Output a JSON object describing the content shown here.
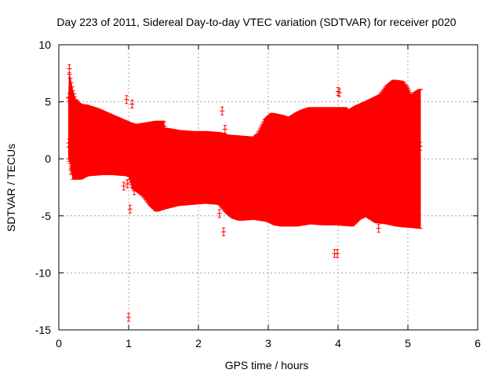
{
  "chart_data": {
    "type": "errorbar",
    "title": "Day 223 of 2011, Sidereal Day-to-day VTEC variation (SDTVAR) for receiver p020",
    "xlabel": "GPS time / hours",
    "ylabel": "SDTVAR / TECUs",
    "xlim": [
      0,
      6
    ],
    "ylim": [
      -15,
      10
    ],
    "x_ticks": [
      0,
      1,
      2,
      3,
      4,
      5,
      6
    ],
    "y_ticks": [
      -15,
      -10,
      -5,
      0,
      5,
      10
    ],
    "x_tick_labels": [
      "0",
      "1",
      "2",
      "3",
      "4",
      "5",
      "6"
    ],
    "y_tick_labels": [
      "-15",
      "-10",
      "-5",
      "0",
      "5",
      "10"
    ],
    "grid": true,
    "series_color": "#ff0000",
    "band_upper": [
      [
        0.14,
        5.3
      ],
      [
        0.15,
        7.5
      ],
      [
        0.17,
        6.9
      ],
      [
        0.2,
        6.0
      ],
      [
        0.24,
        5.2
      ],
      [
        0.3,
        4.8
      ],
      [
        0.4,
        4.7
      ],
      [
        0.55,
        4.4
      ],
      [
        0.7,
        4.0
      ],
      [
        0.85,
        3.6
      ],
      [
        1.0,
        3.2
      ],
      [
        1.1,
        3.0
      ],
      [
        1.2,
        3.1
      ],
      [
        1.3,
        3.2
      ],
      [
        1.4,
        3.3
      ],
      [
        1.5,
        3.3
      ],
      [
        1.52,
        2.7
      ],
      [
        1.7,
        2.5
      ],
      [
        1.9,
        2.4
      ],
      [
        2.1,
        2.4
      ],
      [
        2.3,
        2.3
      ],
      [
        2.4,
        2.1
      ],
      [
        2.6,
        2.0
      ],
      [
        2.8,
        1.9
      ],
      [
        2.85,
        2.2
      ],
      [
        2.95,
        3.4
      ],
      [
        3.05,
        4.0
      ],
      [
        3.2,
        3.8
      ],
      [
        3.3,
        3.6
      ],
      [
        3.4,
        4.0
      ],
      [
        3.5,
        4.3
      ],
      [
        3.6,
        4.5
      ],
      [
        3.8,
        4.5
      ],
      [
        4.0,
        4.5
      ],
      [
        4.1,
        4.5
      ],
      [
        4.15,
        4.2
      ],
      [
        4.25,
        4.6
      ],
      [
        4.4,
        5.0
      ],
      [
        4.6,
        5.6
      ],
      [
        4.7,
        6.4
      ],
      [
        4.8,
        6.9
      ],
      [
        4.92,
        6.8
      ],
      [
        5.0,
        6.2
      ],
      [
        5.05,
        5.5
      ],
      [
        5.1,
        5.8
      ],
      [
        5.18,
        6.1
      ]
    ],
    "band_lower": [
      [
        0.14,
        0.0
      ],
      [
        0.17,
        -0.5
      ],
      [
        0.2,
        -1.8
      ],
      [
        0.3,
        -1.8
      ],
      [
        0.4,
        -1.5
      ],
      [
        0.6,
        -1.4
      ],
      [
        0.8,
        -1.4
      ],
      [
        1.0,
        -1.5
      ],
      [
        1.05,
        -2.5
      ],
      [
        1.2,
        -3.2
      ],
      [
        1.3,
        -4.0
      ],
      [
        1.4,
        -4.6
      ],
      [
        1.5,
        -4.4
      ],
      [
        1.7,
        -4.1
      ],
      [
        1.9,
        -4.0
      ],
      [
        2.1,
        -3.9
      ],
      [
        2.3,
        -4.0
      ],
      [
        2.4,
        -4.7
      ],
      [
        2.5,
        -5.2
      ],
      [
        2.6,
        -5.4
      ],
      [
        2.8,
        -5.3
      ],
      [
        3.0,
        -5.5
      ],
      [
        3.1,
        -5.8
      ],
      [
        3.2,
        -5.9
      ],
      [
        3.4,
        -5.9
      ],
      [
        3.6,
        -5.7
      ],
      [
        3.8,
        -5.8
      ],
      [
        4.0,
        -5.8
      ],
      [
        4.2,
        -5.9
      ],
      [
        4.3,
        -5.3
      ],
      [
        4.4,
        -5.0
      ],
      [
        4.55,
        -5.6
      ],
      [
        4.7,
        -5.7
      ],
      [
        4.85,
        -5.9
      ],
      [
        5.0,
        -6.0
      ],
      [
        5.18,
        -6.1
      ]
    ],
    "outlier_points": [
      [
        0.14,
        5.4
      ],
      [
        0.15,
        7.9
      ],
      [
        0.14,
        1.4
      ],
      [
        0.15,
        1.0
      ],
      [
        0.17,
        -1.0
      ],
      [
        0.97,
        5.2
      ],
      [
        1.05,
        4.8
      ],
      [
        1.0,
        -13.9
      ],
      [
        1.02,
        -4.4
      ],
      [
        0.93,
        -2.4
      ],
      [
        0.98,
        -2.2
      ],
      [
        1.08,
        -2.8
      ],
      [
        1.2,
        -2.8
      ],
      [
        2.34,
        4.2
      ],
      [
        2.36,
        -6.4
      ],
      [
        2.38,
        2.6
      ],
      [
        2.3,
        -4.8
      ],
      [
        3.95,
        -8.3
      ],
      [
        3.99,
        -8.3
      ],
      [
        4.0,
        5.9
      ],
      [
        4.02,
        5.8
      ],
      [
        4.58,
        -6.1
      ],
      [
        5.18,
        1.1
      ]
    ]
  }
}
